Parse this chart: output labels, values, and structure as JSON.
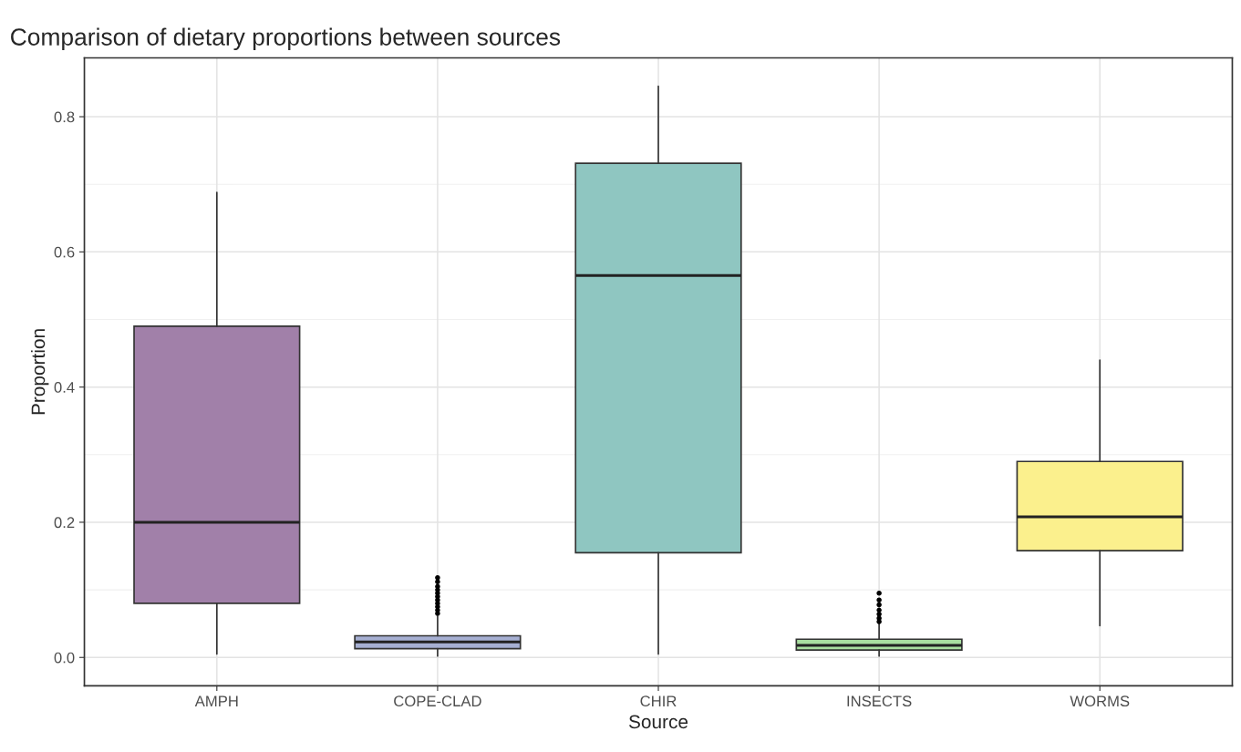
{
  "chart_data": {
    "type": "box",
    "title": "Comparison of dietary proportions between sources",
    "xlabel": "Source",
    "ylabel": "Proportion",
    "categories": [
      "AMPH",
      "COPE-CLAD",
      "CHIR",
      "INSECTS",
      "WORMS"
    ],
    "colors": [
      "#a180a9",
      "#a6afd2",
      "#8fc6c1",
      "#a9dea0",
      "#fbf08d"
    ],
    "boxes": [
      {
        "low": 0.005,
        "q1": 0.08,
        "median": 0.2,
        "q3": 0.49,
        "high": 0.688
      },
      {
        "low": 0.002,
        "q1": 0.013,
        "median": 0.023,
        "q3": 0.032,
        "high": 0.061,
        "outliers": [
          0.065,
          0.07,
          0.075,
          0.08,
          0.085,
          0.09,
          0.095,
          0.1,
          0.105,
          0.112,
          0.118
        ]
      },
      {
        "low": 0.005,
        "q1": 0.155,
        "median": 0.565,
        "q3": 0.731,
        "high": 0.845
      },
      {
        "low": 0.002,
        "q1": 0.011,
        "median": 0.018,
        "q3": 0.027,
        "high": 0.05,
        "outliers": [
          0.053,
          0.058,
          0.064,
          0.07,
          0.078,
          0.085,
          0.095
        ]
      },
      {
        "low": 0.047,
        "q1": 0.158,
        "median": 0.208,
        "q3": 0.29,
        "high": 0.44
      }
    ],
    "ylim": [
      -0.042,
      0.887
    ],
    "yticks": [
      {
        "value": 0,
        "label": "0.0"
      },
      0.2,
      0.4,
      0.6,
      0.8
    ],
    "grid": true
  }
}
